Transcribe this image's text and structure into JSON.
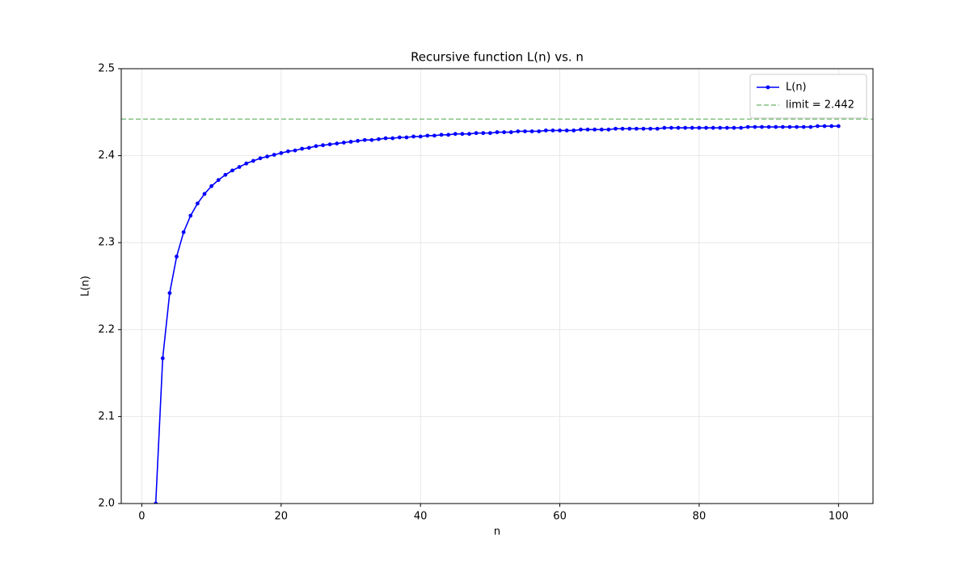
{
  "chart_data": {
    "type": "line",
    "title": "Recursive function L(n) vs. n",
    "xlabel": "n",
    "ylabel": "L(n)",
    "x": [
      2,
      3,
      4,
      5,
      6,
      7,
      8,
      9,
      10,
      11,
      12,
      13,
      14,
      15,
      16,
      17,
      18,
      19,
      20,
      21,
      22,
      23,
      24,
      25,
      26,
      27,
      28,
      29,
      30,
      31,
      32,
      33,
      34,
      35,
      36,
      37,
      38,
      39,
      40,
      41,
      42,
      43,
      44,
      45,
      46,
      47,
      48,
      49,
      50,
      51,
      52,
      53,
      54,
      55,
      56,
      57,
      58,
      59,
      60,
      61,
      62,
      63,
      64,
      65,
      66,
      67,
      68,
      69,
      70,
      71,
      72,
      73,
      74,
      75,
      76,
      77,
      78,
      79,
      80,
      81,
      82,
      83,
      84,
      85,
      86,
      87,
      88,
      89,
      90,
      91,
      92,
      93,
      94,
      95,
      96,
      97,
      98,
      99,
      100
    ],
    "series": [
      {
        "name": "L(n)",
        "color": "#0000ff",
        "marker": true,
        "values": [
          2.0,
          2.167,
          2.242,
          2.284,
          2.312,
          2.331,
          2.345,
          2.356,
          2.365,
          2.372,
          2.378,
          2.383,
          2.387,
          2.391,
          2.394,
          2.397,
          2.399,
          2.401,
          2.403,
          2.405,
          2.406,
          2.408,
          2.409,
          2.411,
          2.412,
          2.413,
          2.414,
          2.415,
          2.416,
          2.417,
          2.418,
          2.418,
          2.419,
          2.42,
          2.42,
          2.421,
          2.421,
          2.422,
          2.422,
          2.423,
          2.423,
          2.424,
          2.424,
          2.425,
          2.425,
          2.425,
          2.426,
          2.426,
          2.426,
          2.427,
          2.427,
          2.427,
          2.428,
          2.428,
          2.428,
          2.428,
          2.429,
          2.429,
          2.429,
          2.429,
          2.429,
          2.43,
          2.43,
          2.43,
          2.43,
          2.43,
          2.431,
          2.431,
          2.431,
          2.431,
          2.431,
          2.431,
          2.431,
          2.432,
          2.432,
          2.432,
          2.432,
          2.432,
          2.432,
          2.432,
          2.432,
          2.432,
          2.432,
          2.432,
          2.432,
          2.433,
          2.433,
          2.433,
          2.433,
          2.433,
          2.433,
          2.433,
          2.433,
          2.433,
          2.433,
          2.434,
          2.434,
          2.434,
          2.434
        ]
      }
    ],
    "reference_line": {
      "name": "limit = 2.442",
      "value": 2.442,
      "color": "#80c080",
      "dashed": true
    },
    "xlim": [
      -2.95,
      104.95
    ],
    "ylim": [
      2.0,
      2.5
    ],
    "xticks": [
      0,
      20,
      40,
      60,
      80,
      100
    ],
    "yticks": [
      {
        "value": 2.0,
        "label": "2.0"
      },
      2.1,
      2.2,
      2.3,
      2.4,
      2.5
    ],
    "grid": true,
    "legend": "upper right"
  }
}
